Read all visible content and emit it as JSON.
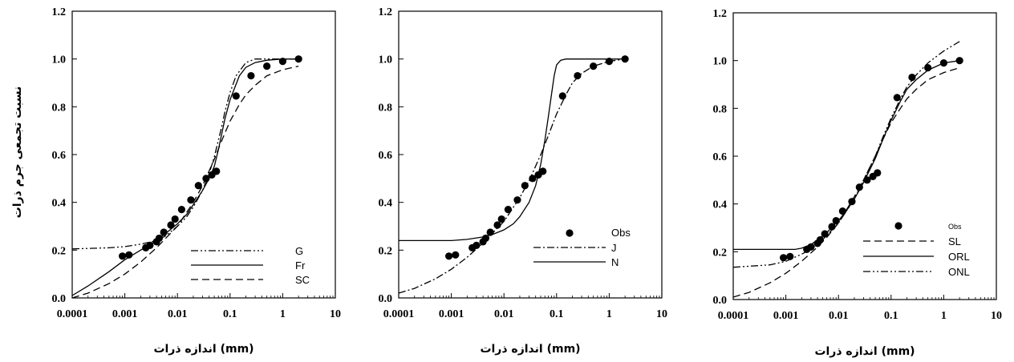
{
  "figure": {
    "ylabel": "نسبت تجمعی جرم ذرات",
    "xlabel": "اندازه  ذرات (mm)"
  },
  "chart_data": [
    {
      "type": "line",
      "xscale": "log",
      "xlim": [
        0.0001,
        10
      ],
      "ylim": [
        0,
        1.2
      ],
      "x_ticks": [
        "0.0001",
        "0.001",
        "0.01",
        "0.1",
        "1",
        "10"
      ],
      "y_ticks": [
        "0.0",
        "0.2",
        "0.4",
        "0.6",
        "0.8",
        "1.0",
        "1.2"
      ],
      "xlabel": "اندازه  ذرات (mm)",
      "ylabel": "نسبت تجمعی جرم ذرات",
      "legend_position": "bottom-right",
      "observed": {
        "name": "",
        "x": [
          0.0009,
          0.0012,
          0.0025,
          0.003,
          0.004,
          0.0045,
          0.0055,
          0.0075,
          0.009,
          0.012,
          0.018,
          0.025,
          0.035,
          0.045,
          0.055,
          0.13,
          0.25,
          0.5,
          1.0,
          2.0
        ],
        "y": [
          0.175,
          0.18,
          0.21,
          0.22,
          0.235,
          0.25,
          0.275,
          0.305,
          0.33,
          0.37,
          0.41,
          0.47,
          0.5,
          0.515,
          0.53,
          0.845,
          0.93,
          0.97,
          0.99,
          1.0
        ]
      },
      "series": [
        {
          "name": "G",
          "style": "dash-dot-dot",
          "x": [
            0.0001,
            0.0005,
            0.001,
            0.002,
            0.004,
            0.006,
            0.01,
            0.015,
            0.02,
            0.03,
            0.04,
            0.05,
            0.06,
            0.07,
            0.08,
            0.1,
            0.13,
            0.2,
            0.3,
            0.5,
            1,
            2
          ],
          "y": [
            0.205,
            0.21,
            0.215,
            0.225,
            0.24,
            0.26,
            0.3,
            0.34,
            0.38,
            0.45,
            0.52,
            0.59,
            0.66,
            0.72,
            0.78,
            0.86,
            0.93,
            0.985,
            1.0,
            1.0,
            1.0,
            1.0
          ]
        },
        {
          "name": "Fr",
          "style": "solid",
          "x": [
            0.0001,
            0.0002,
            0.0005,
            0.001,
            0.002,
            0.004,
            0.006,
            0.01,
            0.015,
            0.02,
            0.03,
            0.04,
            0.05,
            0.06,
            0.08,
            0.1,
            0.15,
            0.2,
            0.3,
            0.5,
            1,
            2
          ],
          "y": [
            0.01,
            0.05,
            0.11,
            0.16,
            0.2,
            0.24,
            0.27,
            0.31,
            0.35,
            0.39,
            0.45,
            0.5,
            0.55,
            0.62,
            0.75,
            0.83,
            0.93,
            0.965,
            0.985,
            0.995,
            1.0,
            1.0
          ]
        },
        {
          "name": "SC",
          "style": "dashed",
          "x": [
            0.0001,
            0.0002,
            0.0005,
            0.001,
            0.002,
            0.004,
            0.006,
            0.01,
            0.02,
            0.03,
            0.05,
            0.07,
            0.1,
            0.15,
            0.2,
            0.3,
            0.5,
            1,
            2
          ],
          "y": [
            0.0,
            0.02,
            0.06,
            0.1,
            0.15,
            0.21,
            0.25,
            0.3,
            0.4,
            0.47,
            0.58,
            0.66,
            0.74,
            0.81,
            0.85,
            0.89,
            0.93,
            0.955,
            0.97
          ]
        }
      ]
    },
    {
      "type": "line",
      "xscale": "log",
      "xlim": [
        0.0001,
        10
      ],
      "ylim": [
        0,
        1.2
      ],
      "x_ticks": [
        "0.0001",
        "0.001",
        "0.01",
        "0.1",
        "1",
        "10"
      ],
      "y_ticks": [
        "0.0",
        "0.2",
        "0.4",
        "0.6",
        "0.8",
        "1.0",
        "1.2"
      ],
      "xlabel": "اندازه  ذرات (mm)",
      "ylabel": "",
      "legend_position": "bottom-right",
      "observed": {
        "name": "Obs",
        "x": [
          0.0009,
          0.0012,
          0.0025,
          0.003,
          0.004,
          0.0045,
          0.0055,
          0.0075,
          0.009,
          0.012,
          0.018,
          0.025,
          0.035,
          0.045,
          0.055,
          0.13,
          0.25,
          0.5,
          1.0,
          2.0
        ],
        "y": [
          0.175,
          0.18,
          0.21,
          0.22,
          0.235,
          0.25,
          0.275,
          0.305,
          0.33,
          0.37,
          0.41,
          0.47,
          0.5,
          0.515,
          0.53,
          0.845,
          0.93,
          0.97,
          0.99,
          1.0
        ]
      },
      "series": [
        {
          "name": "J",
          "style": "dash-dot",
          "x": [
            0.0001,
            0.0002,
            0.0005,
            0.001,
            0.002,
            0.004,
            0.006,
            0.01,
            0.02,
            0.03,
            0.05,
            0.07,
            0.1,
            0.15,
            0.2,
            0.3,
            0.5,
            1,
            2
          ],
          "y": [
            0.02,
            0.04,
            0.08,
            0.12,
            0.17,
            0.23,
            0.27,
            0.32,
            0.42,
            0.49,
            0.6,
            0.68,
            0.77,
            0.85,
            0.9,
            0.94,
            0.97,
            0.99,
            1.0
          ]
        },
        {
          "name": "N",
          "style": "solid",
          "x": [
            0.0001,
            0.0005,
            0.001,
            0.002,
            0.004,
            0.006,
            0.01,
            0.015,
            0.02,
            0.03,
            0.04,
            0.05,
            0.06,
            0.07,
            0.08,
            0.09,
            0.1,
            0.12,
            0.15,
            0.2,
            0.5,
            1,
            2
          ],
          "y": [
            0.24,
            0.24,
            0.24,
            0.245,
            0.255,
            0.265,
            0.285,
            0.31,
            0.34,
            0.4,
            0.47,
            0.56,
            0.66,
            0.76,
            0.85,
            0.93,
            0.975,
            0.995,
            1.0,
            1.0,
            1.0,
            1.0,
            1.0
          ]
        }
      ]
    },
    {
      "type": "line",
      "xscale": "log",
      "xlim": [
        0.0001,
        10
      ],
      "ylim": [
        0,
        1.2
      ],
      "x_ticks": [
        "0.0001",
        "0.001",
        "0.01",
        "0.1",
        "1",
        "10"
      ],
      "y_ticks": [
        "0.0",
        "0.2",
        "0.4",
        "0.6",
        "0.8",
        "1.0",
        "1.2"
      ],
      "xlabel": "اندازه  ذرات (mm)",
      "ylabel": "",
      "legend_position": "bottom-right",
      "observed": {
        "name": "Obs",
        "x": [
          0.0009,
          0.0012,
          0.0025,
          0.003,
          0.004,
          0.0045,
          0.0055,
          0.0075,
          0.009,
          0.012,
          0.018,
          0.025,
          0.035,
          0.045,
          0.055,
          0.13,
          0.25,
          0.5,
          1.0,
          2.0
        ],
        "y": [
          0.175,
          0.18,
          0.21,
          0.22,
          0.235,
          0.25,
          0.275,
          0.305,
          0.33,
          0.37,
          0.41,
          0.47,
          0.5,
          0.515,
          0.53,
          0.845,
          0.93,
          0.97,
          0.99,
          1.0
        ]
      },
      "series": [
        {
          "name": "SL",
          "style": "dashed",
          "x": [
            0.0001,
            0.0002,
            0.0005,
            0.001,
            0.002,
            0.004,
            0.006,
            0.01,
            0.02,
            0.03,
            0.05,
            0.07,
            0.1,
            0.15,
            0.2,
            0.3,
            0.5,
            1,
            2
          ],
          "y": [
            0.01,
            0.03,
            0.07,
            0.11,
            0.16,
            0.22,
            0.26,
            0.32,
            0.43,
            0.5,
            0.6,
            0.67,
            0.74,
            0.8,
            0.84,
            0.88,
            0.92,
            0.95,
            0.97
          ]
        },
        {
          "name": "ORL",
          "style": "solid",
          "x": [
            0.0001,
            0.0005,
            0.001,
            0.0015,
            0.002,
            0.003,
            0.004,
            0.006,
            0.01,
            0.015,
            0.02,
            0.03,
            0.05,
            0.07,
            0.1,
            0.15,
            0.2,
            0.3,
            0.5,
            1,
            2
          ],
          "y": [
            0.21,
            0.21,
            0.21,
            0.21,
            0.215,
            0.23,
            0.25,
            0.28,
            0.33,
            0.38,
            0.42,
            0.49,
            0.59,
            0.67,
            0.75,
            0.83,
            0.88,
            0.92,
            0.96,
            0.99,
            1.0
          ]
        },
        {
          "name": "ONL",
          "style": "dash-dot-dot",
          "x": [
            0.0001,
            0.0005,
            0.001,
            0.002,
            0.003,
            0.005,
            0.01,
            0.02,
            0.03,
            0.05,
            0.07,
            0.1,
            0.15,
            0.2,
            0.3,
            0.5,
            1,
            2
          ],
          "y": [
            0.135,
            0.145,
            0.16,
            0.19,
            0.21,
            0.25,
            0.32,
            0.42,
            0.5,
            0.6,
            0.68,
            0.76,
            0.84,
            0.89,
            0.94,
            0.99,
            1.04,
            1.08
          ]
        }
      ]
    }
  ]
}
